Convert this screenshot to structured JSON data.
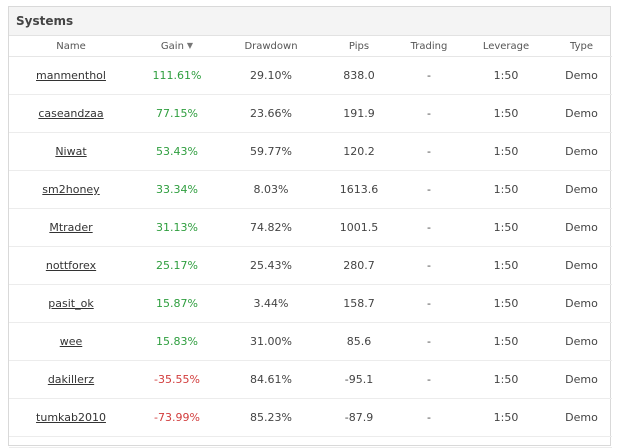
{
  "panel": {
    "title": "Systems"
  },
  "columns": {
    "name": "Name",
    "gain": "Gain",
    "drawdown": "Drawdown",
    "pips": "Pips",
    "trading": "Trading",
    "leverage": "Leverage",
    "type": "Type"
  },
  "sort_icon": "caret-down-icon",
  "colors": {
    "positive": "#2e9e3e",
    "negative": "#d23c3c"
  },
  "rows": [
    {
      "name": "manmenthol",
      "gain": "111.61%",
      "gain_sign": "pos",
      "drawdown": "29.10%",
      "pips": "838.0",
      "trading": "-",
      "leverage": "1:50",
      "type": "Demo"
    },
    {
      "name": "caseandzaa",
      "gain": "77.15%",
      "gain_sign": "pos",
      "drawdown": "23.66%",
      "pips": "191.9",
      "trading": "-",
      "leverage": "1:50",
      "type": "Demo"
    },
    {
      "name": "Niwat",
      "gain": "53.43%",
      "gain_sign": "pos",
      "drawdown": "59.77%",
      "pips": "120.2",
      "trading": "-",
      "leverage": "1:50",
      "type": "Demo"
    },
    {
      "name": "sm2honey",
      "gain": "33.34%",
      "gain_sign": "pos",
      "drawdown": "8.03%",
      "pips": "1613.6",
      "trading": "-",
      "leverage": "1:50",
      "type": "Demo"
    },
    {
      "name": "Mtrader",
      "gain": "31.13%",
      "gain_sign": "pos",
      "drawdown": "74.82%",
      "pips": "1001.5",
      "trading": "-",
      "leverage": "1:50",
      "type": "Demo"
    },
    {
      "name": "nottforex",
      "gain": "25.17%",
      "gain_sign": "pos",
      "drawdown": "25.43%",
      "pips": "280.7",
      "trading": "-",
      "leverage": "1:50",
      "type": "Demo"
    },
    {
      "name": "pasit_ok",
      "gain": "15.87%",
      "gain_sign": "pos",
      "drawdown": "3.44%",
      "pips": "158.7",
      "trading": "-",
      "leverage": "1:50",
      "type": "Demo"
    },
    {
      "name": "wee",
      "gain": "15.83%",
      "gain_sign": "pos",
      "drawdown": "31.00%",
      "pips": "85.6",
      "trading": "-",
      "leverage": "1:50",
      "type": "Demo"
    },
    {
      "name": "dakillerz",
      "gain": "-35.55%",
      "gain_sign": "neg",
      "drawdown": "84.61%",
      "pips": "-95.1",
      "trading": "-",
      "leverage": "1:50",
      "type": "Demo"
    },
    {
      "name": "tumkab2010",
      "gain": "-73.99%",
      "gain_sign": "neg",
      "drawdown": "85.23%",
      "pips": "-87.9",
      "trading": "-",
      "leverage": "1:50",
      "type": "Demo"
    }
  ]
}
